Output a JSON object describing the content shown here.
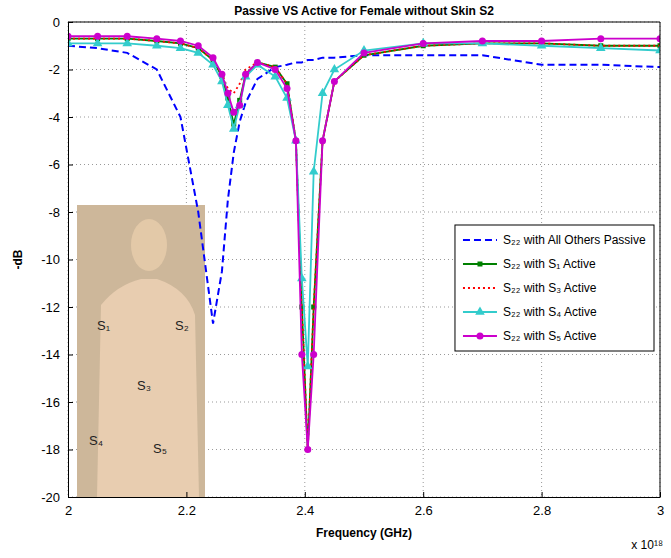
{
  "chart_data": {
    "type": "line",
    "title": "Passive VS Active for Female without Skin S2",
    "x_label": "Frequency (GHz)",
    "y_label": "-dB",
    "x_multiplier": "x 10¹⁸",
    "x": [
      2.0,
      2.05,
      2.1,
      2.15,
      2.19,
      2.22,
      2.245,
      2.26,
      2.27,
      2.28,
      2.29,
      2.3,
      2.32,
      2.35,
      2.37,
      2.385,
      2.395,
      2.405,
      2.415,
      2.43,
      2.45,
      2.5,
      2.6,
      2.7,
      2.8,
      2.9,
      3.0
    ],
    "series": [
      {
        "name": "S₂₂ with All Others Passive",
        "color": "#0000ff",
        "line_style": "dashed",
        "marker": "none",
        "values": [
          -1.0,
          -1.1,
          -1.3,
          -2.0,
          -4.0,
          -8.0,
          -12.7,
          -10.5,
          -7.5,
          -5.5,
          -4.2,
          -3.4,
          -2.4,
          -1.9,
          -1.8,
          -1.7,
          -1.7,
          -1.6,
          -1.6,
          -1.5,
          -1.5,
          -1.4,
          -1.4,
          -1.4,
          -1.8,
          -1.8,
          -1.9
        ]
      },
      {
        "name": "S₂₂ with S₁ Active",
        "color": "#008000",
        "line_style": "solid",
        "marker": "square",
        "values": [
          -0.7,
          -0.7,
          -0.7,
          -0.8,
          -0.9,
          -1.1,
          -1.6,
          -2.3,
          -3.2,
          -4.3,
          -3.3,
          -2.2,
          -1.7,
          -1.9,
          -2.6,
          -5.0,
          -12.0,
          -18.0,
          -12.0,
          -5.0,
          -2.5,
          -1.4,
          -1.0,
          -0.9,
          -0.9,
          -1.0,
          -1.0
        ]
      },
      {
        "name": "S₂₂ with S₃ Active",
        "color": "#ff0000",
        "line_style": "dotted",
        "marker": "none",
        "values": [
          -0.7,
          -0.7,
          -0.7,
          -0.8,
          -0.9,
          -1.1,
          -1.6,
          -2.2,
          -2.8,
          -3.0,
          -2.6,
          -2.0,
          -1.7,
          -1.9,
          -2.6,
          -5.0,
          -12.0,
          -18.0,
          -12.0,
          -5.0,
          -2.5,
          -1.4,
          -1.0,
          -0.9,
          -0.9,
          -1.0,
          -1.0
        ]
      },
      {
        "name": "S₂₂ with S₄ Active",
        "color": "#33cccc",
        "line_style": "solid",
        "marker": "triangle",
        "values": [
          -0.9,
          -0.9,
          -0.9,
          -1.0,
          -1.1,
          -1.3,
          -1.8,
          -2.5,
          -3.5,
          -4.5,
          -3.5,
          -2.3,
          -1.8,
          -2.3,
          -3.2,
          -5.0,
          -10.8,
          -14.5,
          -6.3,
          -3.0,
          -2.0,
          -1.2,
          -0.9,
          -0.9,
          -1.0,
          -1.1,
          -1.2
        ]
      },
      {
        "name": "S₂₂ with S₅ Active",
        "color": "#cc00cc",
        "line_style": "solid",
        "marker": "circle",
        "values": [
          -0.6,
          -0.6,
          -0.6,
          -0.7,
          -0.8,
          -1.0,
          -1.5,
          -2.2,
          -3.0,
          -3.8,
          -3.5,
          -2.2,
          -1.7,
          -2.0,
          -2.8,
          -5.0,
          -14.0,
          -18.0,
          -14.0,
          -5.0,
          -2.5,
          -1.3,
          -0.9,
          -0.8,
          -0.8,
          -0.7,
          -0.7
        ]
      }
    ],
    "xlim": [
      2,
      3
    ],
    "ylim": [
      -20,
      0
    ],
    "xticks": [
      2,
      2.2,
      2.4,
      2.6,
      2.8,
      3
    ],
    "yticks": [
      -20,
      -18,
      -16,
      -14,
      -12,
      -10,
      -8,
      -6,
      -4,
      -2,
      0
    ],
    "grid": true,
    "legend": "right",
    "inset_labels": [
      "S₁",
      "S₂",
      "S₃",
      "S₄",
      "S₅"
    ]
  }
}
